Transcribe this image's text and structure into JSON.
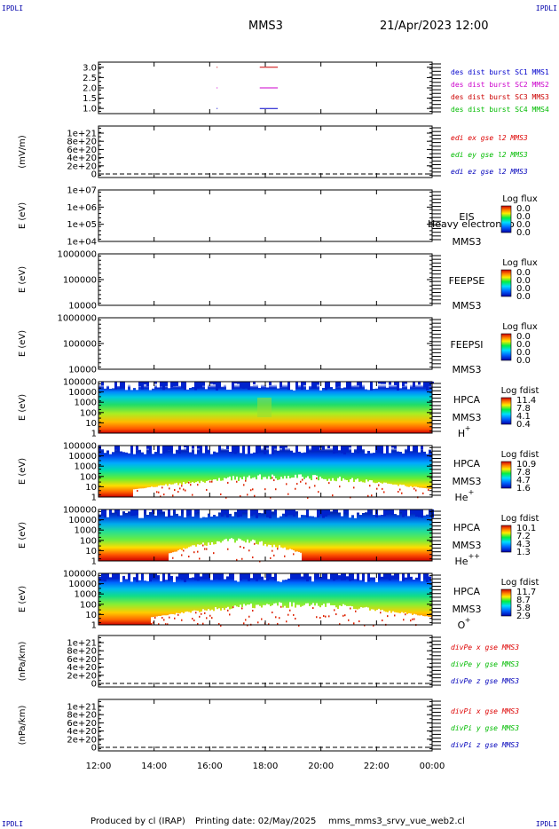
{
  "corner_label": "IPDLI",
  "header": {
    "spacecraft": "MMS3",
    "datetime": "21/Apr/2023 12:00"
  },
  "footer": {
    "producer": "Produced by cl (IRAP)",
    "printing_date": "Printing date: 02/May/2025",
    "filename": "mms_mms3_srvy_vue_web2.cl"
  },
  "colors": {
    "sc1": "#0000cc",
    "sc2": "#cc00cc",
    "sc3": "#cc0000",
    "sc4": "#00bb00",
    "x": "#dd0000",
    "y": "#00bb00",
    "z": "#0000bb"
  },
  "chart_data": [
    {
      "type": "scatter",
      "id": "burst",
      "yticks": [
        "3.0",
        "2.5",
        "2.0",
        "1.5",
        "1.0"
      ],
      "ylim": [
        0.75,
        3.25
      ],
      "series": [
        {
          "name": "des dist burst SC1 MMS1",
          "level": 1.0,
          "color": "#0000cc",
          "segments": [
            [
              16.25,
              16.28
            ],
            [
              17.8,
              18.45
            ]
          ]
        },
        {
          "name": "des dist burst SC2 MMS2",
          "level": 2.0,
          "color": "#cc00cc",
          "segments": [
            [
              16.25,
              16.28
            ],
            [
              17.8,
              18.45
            ]
          ]
        },
        {
          "name": "des dist burst SC3 MMS3",
          "level": 3.0,
          "color": "#cc0000",
          "segments": [
            [
              16.25,
              16.28
            ],
            [
              17.8,
              18.45
            ]
          ]
        },
        {
          "name": "des dist burst SC4 MMS4",
          "level": 0,
          "color": "#00bb00",
          "segments": []
        }
      ]
    },
    {
      "type": "line",
      "id": "edi",
      "ylabel": "(mV/m)",
      "yticks": [
        "1e+21",
        "8e+20",
        "6e+20",
        "4e+20",
        "2e+20",
        "0"
      ],
      "series": [
        {
          "name": "edi ex gse l2 MMS3",
          "color": "#dd0000"
        },
        {
          "name": "edi ey gse l2 MMS3",
          "color": "#00bb00"
        },
        {
          "name": "edi ez gse l2 MMS3",
          "color": "#0000bb"
        }
      ]
    },
    {
      "type": "heatmap",
      "id": "eis",
      "ylabel": "E (eV)",
      "yticks": [
        "1e+07",
        "1e+06",
        "1e+05",
        "1e+04"
      ],
      "instrument": "EIS",
      "overlay": "Heavy electron to",
      "spacecraft": "MMS3",
      "colorbar": {
        "title": "Log flux",
        "ticks": [
          "0.0",
          "0.0",
          "0.0",
          "0.0"
        ]
      },
      "empty": true
    },
    {
      "type": "heatmap",
      "id": "feepse",
      "ylabel": "E (eV)",
      "yticks": [
        "1000000",
        "100000",
        "10000"
      ],
      "instrument": "FEEPSE",
      "spacecraft": "MMS3",
      "colorbar": {
        "title": "Log flux",
        "ticks": [
          "0.0",
          "0.0",
          "0.0",
          "0.0"
        ]
      },
      "empty": true
    },
    {
      "type": "heatmap",
      "id": "feepsi",
      "ylabel": "E (eV)",
      "yticks": [
        "1000000",
        "100000",
        "10000"
      ],
      "instrument": "FEEPSI",
      "spacecraft": "MMS3",
      "colorbar": {
        "title": "Log flux",
        "ticks": [
          "0.0",
          "0.0",
          "0.0",
          "0.0"
        ]
      },
      "empty": true
    },
    {
      "type": "heatmap",
      "id": "hpca_h",
      "ylabel": "E (eV)",
      "yticks": [
        "100000",
        "10000",
        "1000",
        "100",
        "10",
        "1"
      ],
      "instrument": "HPCA",
      "spacecraft": "MMS3",
      "species": "H",
      "charge": "+",
      "colorbar": {
        "title": "Log fdist",
        "ticks": [
          "11.4",
          "7.8",
          "4.1",
          "0.4"
        ]
      },
      "empty": false
    },
    {
      "type": "heatmap",
      "id": "hpca_he",
      "ylabel": "E (eV)",
      "yticks": [
        "100000",
        "10000",
        "1000",
        "100",
        "10",
        "1"
      ],
      "instrument": "HPCA",
      "spacecraft": "MMS3",
      "species": "He",
      "charge": "+",
      "colorbar": {
        "title": "Log fdist",
        "ticks": [
          "10.9",
          "7.8",
          "4.7",
          "1.6"
        ]
      },
      "empty": false
    },
    {
      "type": "heatmap",
      "id": "hpca_he2",
      "ylabel": "E (eV)",
      "yticks": [
        "100000",
        "10000",
        "1000",
        "100",
        "10",
        "1"
      ],
      "instrument": "HPCA",
      "spacecraft": "MMS3",
      "species": "He",
      "charge": "++",
      "colorbar": {
        "title": "Log fdist",
        "ticks": [
          "10.1",
          "7.2",
          "4.3",
          "1.3"
        ]
      },
      "empty": false
    },
    {
      "type": "heatmap",
      "id": "hpca_o",
      "ylabel": "E (eV)",
      "yticks": [
        "100000",
        "10000",
        "1000",
        "100",
        "10",
        "1"
      ],
      "instrument": "HPCA",
      "spacecraft": "MMS3",
      "species": "O",
      "charge": "+",
      "colorbar": {
        "title": "Log fdist",
        "ticks": [
          "11.7",
          "8.7",
          "5.8",
          "2.9"
        ]
      },
      "empty": false
    },
    {
      "type": "line",
      "id": "divpe",
      "ylabel": "(nPa/km)",
      "yticks": [
        "1e+21",
        "8e+20",
        "6e+20",
        "4e+20",
        "2e+20",
        "0"
      ],
      "series": [
        {
          "name": "divPe x gse MMS3",
          "color": "#dd0000"
        },
        {
          "name": "divPe y gse MMS3",
          "color": "#00bb00"
        },
        {
          "name": "divPe z gse MMS3",
          "color": "#0000bb"
        }
      ]
    },
    {
      "type": "line",
      "id": "divpi",
      "ylabel": "(nPa/km)",
      "yticks": [
        "1e+21",
        "8e+20",
        "6e+20",
        "4e+20",
        "2e+20",
        "0"
      ],
      "series": [
        {
          "name": "divPi x gse MMS3",
          "color": "#dd0000"
        },
        {
          "name": "divPi y gse MMS3",
          "color": "#00bb00"
        },
        {
          "name": "divPi z gse MMS3",
          "color": "#0000bb"
        }
      ]
    }
  ],
  "xaxis": {
    "ticks": [
      "12:00",
      "14:00",
      "16:00",
      "18:00",
      "20:00",
      "22:00",
      "00:00"
    ],
    "xlim": [
      12,
      24
    ]
  }
}
